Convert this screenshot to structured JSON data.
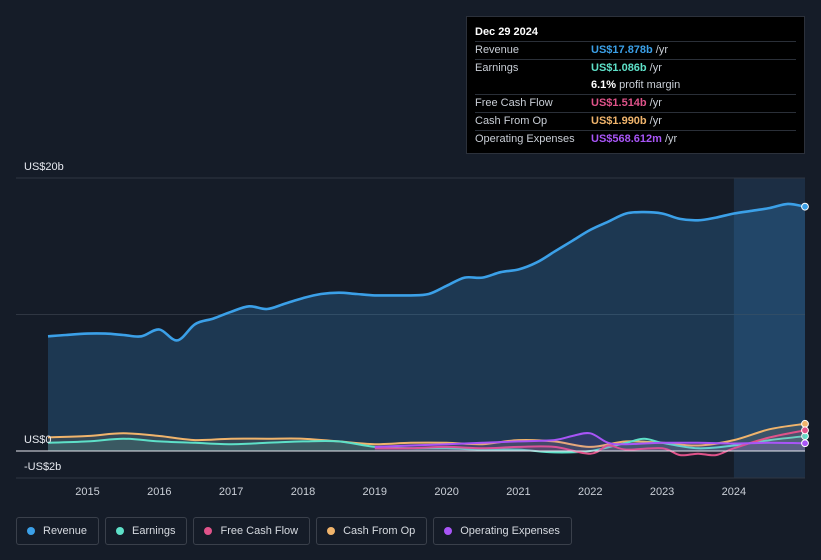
{
  "tooltip": {
    "date": "Dec 29 2024",
    "rows": [
      {
        "label": "Revenue",
        "value": "US$17.878b",
        "unit": "/yr",
        "color": "#3ba0e8"
      },
      {
        "label": "Earnings",
        "value": "US$1.086b",
        "unit": "/yr",
        "color": "#5ee0c8"
      },
      {
        "label": "",
        "value": "6.1%",
        "unit": "profit margin",
        "color": "#ffffff"
      },
      {
        "label": "Free Cash Flow",
        "value": "US$1.514b",
        "unit": "/yr",
        "color": "#e0538a"
      },
      {
        "label": "Cash From Op",
        "value": "US$1.990b",
        "unit": "/yr",
        "color": "#f0b46c"
      },
      {
        "label": "Operating Expenses",
        "value": "US$568.612m",
        "unit": "/yr",
        "color": "#a855f7"
      }
    ]
  },
  "legend": [
    {
      "label": "Revenue",
      "color": "#3ba0e8"
    },
    {
      "label": "Earnings",
      "color": "#5ee0c8"
    },
    {
      "label": "Free Cash Flow",
      "color": "#e0538a"
    },
    {
      "label": "Cash From Op",
      "color": "#f0b46c"
    },
    {
      "label": "Operating Expenses",
      "color": "#a855f7"
    }
  ],
  "chart_data": {
    "type": "area",
    "title": "",
    "xlabel": "",
    "ylabel": "",
    "ylim": [
      -2,
      20
    ],
    "xlim": [
      2014.45,
      2024.99
    ],
    "y_tick_labels": [
      {
        "value": 20,
        "label": "US$20b"
      },
      {
        "value": 0,
        "label": "US$0"
      },
      {
        "value": -2,
        "label": "-US$2b"
      }
    ],
    "x_ticks": [
      2015,
      2016,
      2017,
      2018,
      2019,
      2020,
      2021,
      2022,
      2023,
      2024
    ],
    "x_tick_labels": [
      "2015",
      "2016",
      "2017",
      "2018",
      "2019",
      "2020",
      "2021",
      "2022",
      "2023",
      "2024"
    ],
    "highlight_start": 2024.0,
    "series": [
      {
        "name": "Revenue",
        "color": "#3ba0e8",
        "fill": true,
        "x": [
          2014.45,
          2014.7,
          2015.0,
          2015.25,
          2015.5,
          2015.75,
          2016.0,
          2016.25,
          2016.5,
          2016.75,
          2017.0,
          2017.25,
          2017.5,
          2017.75,
          2018.0,
          2018.25,
          2018.5,
          2018.75,
          2019.0,
          2019.25,
          2019.5,
          2019.75,
          2020.0,
          2020.25,
          2020.5,
          2020.75,
          2021.0,
          2021.25,
          2021.5,
          2021.75,
          2022.0,
          2022.25,
          2022.5,
          2022.75,
          2023.0,
          2023.25,
          2023.5,
          2023.75,
          2024.0,
          2024.25,
          2024.5,
          2024.75,
          2024.99
        ],
        "y": [
          8.4,
          8.5,
          8.6,
          8.6,
          8.5,
          8.4,
          8.9,
          8.1,
          9.3,
          9.7,
          10.2,
          10.6,
          10.4,
          10.8,
          11.2,
          11.5,
          11.6,
          11.5,
          11.4,
          11.4,
          11.4,
          11.5,
          12.1,
          12.7,
          12.7,
          13.1,
          13.3,
          13.8,
          14.6,
          15.4,
          16.2,
          16.8,
          17.4,
          17.5,
          17.4,
          17.0,
          16.9,
          17.1,
          17.4,
          17.6,
          17.8,
          18.1,
          17.9
        ]
      },
      {
        "name": "Earnings",
        "color": "#5ee0c8",
        "fill": false,
        "x": [
          2014.45,
          2015.0,
          2015.5,
          2016.0,
          2016.5,
          2017.0,
          2017.5,
          2018.0,
          2018.5,
          2019.0,
          2019.5,
          2020.0,
          2020.5,
          2021.0,
          2021.5,
          2022.0,
          2022.5,
          2022.75,
          2023.0,
          2023.5,
          2024.0,
          2024.5,
          2024.99
        ],
        "y": [
          0.6,
          0.7,
          0.9,
          0.7,
          0.6,
          0.5,
          0.6,
          0.7,
          0.7,
          0.3,
          0.2,
          0.2,
          0.1,
          0.1,
          -0.1,
          0.0,
          0.6,
          0.9,
          0.6,
          0.2,
          0.4,
          0.8,
          1.086
        ]
      },
      {
        "name": "Free Cash Flow",
        "color": "#e0538a",
        "fill": false,
        "x": [
          2019.0,
          2019.5,
          2020.0,
          2020.5,
          2021.0,
          2021.5,
          2022.0,
          2022.25,
          2022.5,
          2023.0,
          2023.25,
          2023.5,
          2023.75,
          2024.0,
          2024.5,
          2024.99
        ],
        "y": [
          0.2,
          0.2,
          0.3,
          0.2,
          0.3,
          0.3,
          -0.2,
          0.4,
          0.1,
          0.2,
          -0.3,
          -0.2,
          -0.3,
          0.2,
          1.0,
          1.514
        ]
      },
      {
        "name": "Cash From Op",
        "color": "#f0b46c",
        "fill": false,
        "x": [
          2014.45,
          2015.0,
          2015.5,
          2016.0,
          2016.5,
          2017.0,
          2017.5,
          2018.0,
          2018.5,
          2019.0,
          2019.5,
          2020.0,
          2020.5,
          2021.0,
          2021.5,
          2022.0,
          2022.5,
          2023.0,
          2023.5,
          2024.0,
          2024.5,
          2024.99
        ],
        "y": [
          1.0,
          1.1,
          1.3,
          1.1,
          0.8,
          0.9,
          0.9,
          0.9,
          0.7,
          0.5,
          0.6,
          0.6,
          0.5,
          0.8,
          0.7,
          0.3,
          0.7,
          0.6,
          0.4,
          0.8,
          1.6,
          1.99
        ]
      },
      {
        "name": "Operating Expenses",
        "color": "#a855f7",
        "fill": false,
        "x": [
          2019.0,
          2019.5,
          2020.0,
          2020.5,
          2021.0,
          2021.5,
          2021.75,
          2022.0,
          2022.25,
          2022.5,
          2023.0,
          2023.5,
          2024.0,
          2024.5,
          2024.99
        ],
        "y": [
          0.3,
          0.4,
          0.5,
          0.6,
          0.7,
          0.8,
          1.1,
          1.3,
          0.6,
          0.5,
          0.6,
          0.6,
          0.55,
          0.6,
          0.568612
        ]
      }
    ]
  }
}
